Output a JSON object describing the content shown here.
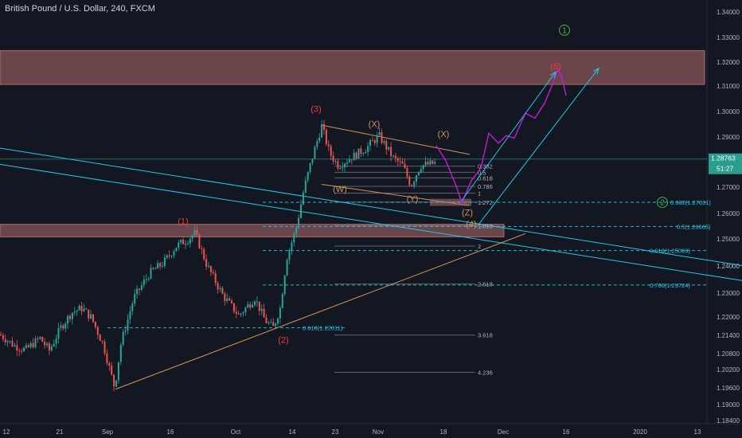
{
  "title": "British Pound / U.S. Dollar, 240, FXCM",
  "colors": {
    "background": "#131722",
    "up": "#26a69a",
    "down": "#ef5350",
    "zone": "#b26b6b",
    "cyan": "#22c8e6",
    "orange": "#d1935a",
    "magenta": "#c21cd6",
    "green": "#4caf50",
    "red": "#f23645",
    "fib": "#9aa0aa",
    "price_tag": "#2a9d8f"
  },
  "chart_data": {
    "type": "candlestick",
    "symbol": "British Pound / U.S. Dollar",
    "interval": "240",
    "source": "FXCM",
    "ylim": [
      1.183,
      1.3465
    ],
    "y_ticks": [
      "1.34000",
      "1.33000",
      "1.32000",
      "1.31000",
      "1.30000",
      "1.29000",
      "1.28000",
      "1.27000",
      "1.26000",
      "1.25000",
      "1.24000",
      "1.23000",
      "1.22000",
      "1.21400",
      "1.20800",
      "1.20200",
      "1.19600",
      "1.19000",
      "1.18400"
    ],
    "x_ticks": [
      "12",
      "21",
      "Sep",
      "16",
      "Oct",
      "14",
      "23",
      "Nov",
      "18",
      "Dec",
      "16",
      "2020",
      "13"
    ],
    "last_price": "1.28763",
    "countdown": "51:27",
    "path": [
      [
        0,
        1.2174
      ],
      [
        18,
        1.213
      ],
      [
        32,
        1.2112
      ],
      [
        50,
        1.216
      ],
      [
        62,
        1.211
      ],
      [
        76,
        1.22
      ],
      [
        90,
        1.2262
      ],
      [
        103,
        1.228
      ],
      [
        115,
        1.224
      ],
      [
        130,
        1.213
      ],
      [
        144,
        1.196
      ],
      [
        152,
        1.214
      ],
      [
        168,
        1.232
      ],
      [
        188,
        1.242
      ],
      [
        205,
        1.246
      ],
      [
        222,
        1.253
      ],
      [
        236,
        1.2555
      ],
      [
        245,
        1.258
      ],
      [
        260,
        1.245
      ],
      [
        280,
        1.233
      ],
      [
        300,
        1.225
      ],
      [
        320,
        1.232
      ],
      [
        333,
        1.223
      ],
      [
        343,
        1.22
      ],
      [
        352,
        1.228
      ],
      [
        360,
        1.248
      ],
      [
        372,
        1.26
      ],
      [
        382,
        1.276
      ],
      [
        392,
        1.288
      ],
      [
        404,
        1.301
      ],
      [
        414,
        1.29
      ],
      [
        425,
        1.285
      ],
      [
        440,
        1.288
      ],
      [
        460,
        1.292
      ],
      [
        476,
        1.297
      ],
      [
        494,
        1.288
      ],
      [
        506,
        1.285
      ],
      [
        516,
        1.277
      ],
      [
        528,
        1.285
      ],
      [
        548,
        1.286
      ]
    ],
    "projection": [
      [
        548,
        1.293
      ],
      [
        560,
        1.287
      ],
      [
        574,
        1.276
      ],
      [
        580,
        1.27
      ],
      [
        592,
        1.279
      ],
      [
        604,
        1.284
      ],
      [
        614,
        1.298
      ],
      [
        626,
        1.294
      ],
      [
        636,
        1.297
      ],
      [
        646,
        1.296
      ],
      [
        660,
        1.306
      ],
      [
        672,
        1.304
      ],
      [
        684,
        1.31
      ],
      [
        692,
        1.316
      ],
      [
        701,
        1.3235
      ],
      [
        706,
        1.32
      ],
      [
        711,
        1.313
      ]
    ],
    "zones": [
      {
        "y1": 1.331,
        "y2": 1.3175
      },
      {
        "y1": 1.2615,
        "y2": 1.2565
      }
    ],
    "channel_upper": [
      [
        0,
        1.292
      ],
      [
        932,
        1.245
      ]
    ],
    "channel_lower": [
      [
        0,
        1.2855
      ],
      [
        932,
        1.239
      ]
    ],
    "trend_support": [
      [
        145,
        1.1955
      ],
      [
        660,
        1.2578
      ]
    ],
    "wave_labels": [
      {
        "text": "(1)",
        "x": 230,
        "y": 1.2615,
        "color": "red"
      },
      {
        "text": "(2)",
        "x": 356,
        "y": 1.214,
        "color": "red"
      },
      {
        "text": "(3)",
        "x": 397,
        "y": 1.3065,
        "color": "red"
      },
      {
        "text": "(4)",
        "x": 592,
        "y": 1.2605,
        "color": "orange"
      },
      {
        "text": "(5)",
        "x": 698,
        "y": 1.3235,
        "color": "red"
      },
      {
        "text": "(X)",
        "x": 470,
        "y": 1.3005,
        "color": "orange"
      },
      {
        "text": "(X)",
        "x": 557,
        "y": 1.2965,
        "color": "orange"
      },
      {
        "text": "(W)",
        "x": 427,
        "y": 1.2745,
        "color": "orange"
      },
      {
        "text": "(Y)",
        "x": 518,
        "y": 1.2705,
        "color": "orange"
      },
      {
        "text": "(Z)",
        "x": 587,
        "y": 1.265,
        "color": "orange"
      }
    ],
    "circle_labels": [
      {
        "text": "1",
        "x": 709,
        "y": 1.3392
      },
      {
        "text": "2",
        "x": 832,
        "y": 1.2703
      }
    ],
    "fib_levels_small": [
      {
        "label": "0.382",
        "y": 1.2848
      },
      {
        "label": "0.5",
        "y": 1.2823
      },
      {
        "label": "0.618",
        "y": 1.2801
      },
      {
        "label": "0.786",
        "y": 1.2767
      },
      {
        "label": "1",
        "y": 1.274
      },
      {
        "label": "1.272",
        "y": 1.2704
      },
      {
        "label": "1.618",
        "y": 1.261
      },
      {
        "label": "2",
        "y": 1.2528
      },
      {
        "label": "2.618",
        "y": 1.2376
      },
      {
        "label": "3.618",
        "y": 1.2172
      },
      {
        "label": "4.236",
        "y": 1.2023
      }
    ],
    "fib_levels_dashed": [
      {
        "label": "0.382(1.27031)",
        "y": 1.27031
      },
      {
        "label": "0.5(1.26065)",
        "y": 1.26065
      },
      {
        "label": "0.618(1.25099)",
        "y": 1.25099
      },
      {
        "label": "0.786(1.23724)",
        "y": 1.23724
      },
      {
        "label": "0.618(1.22011)",
        "y": 1.22011
      }
    ]
  }
}
